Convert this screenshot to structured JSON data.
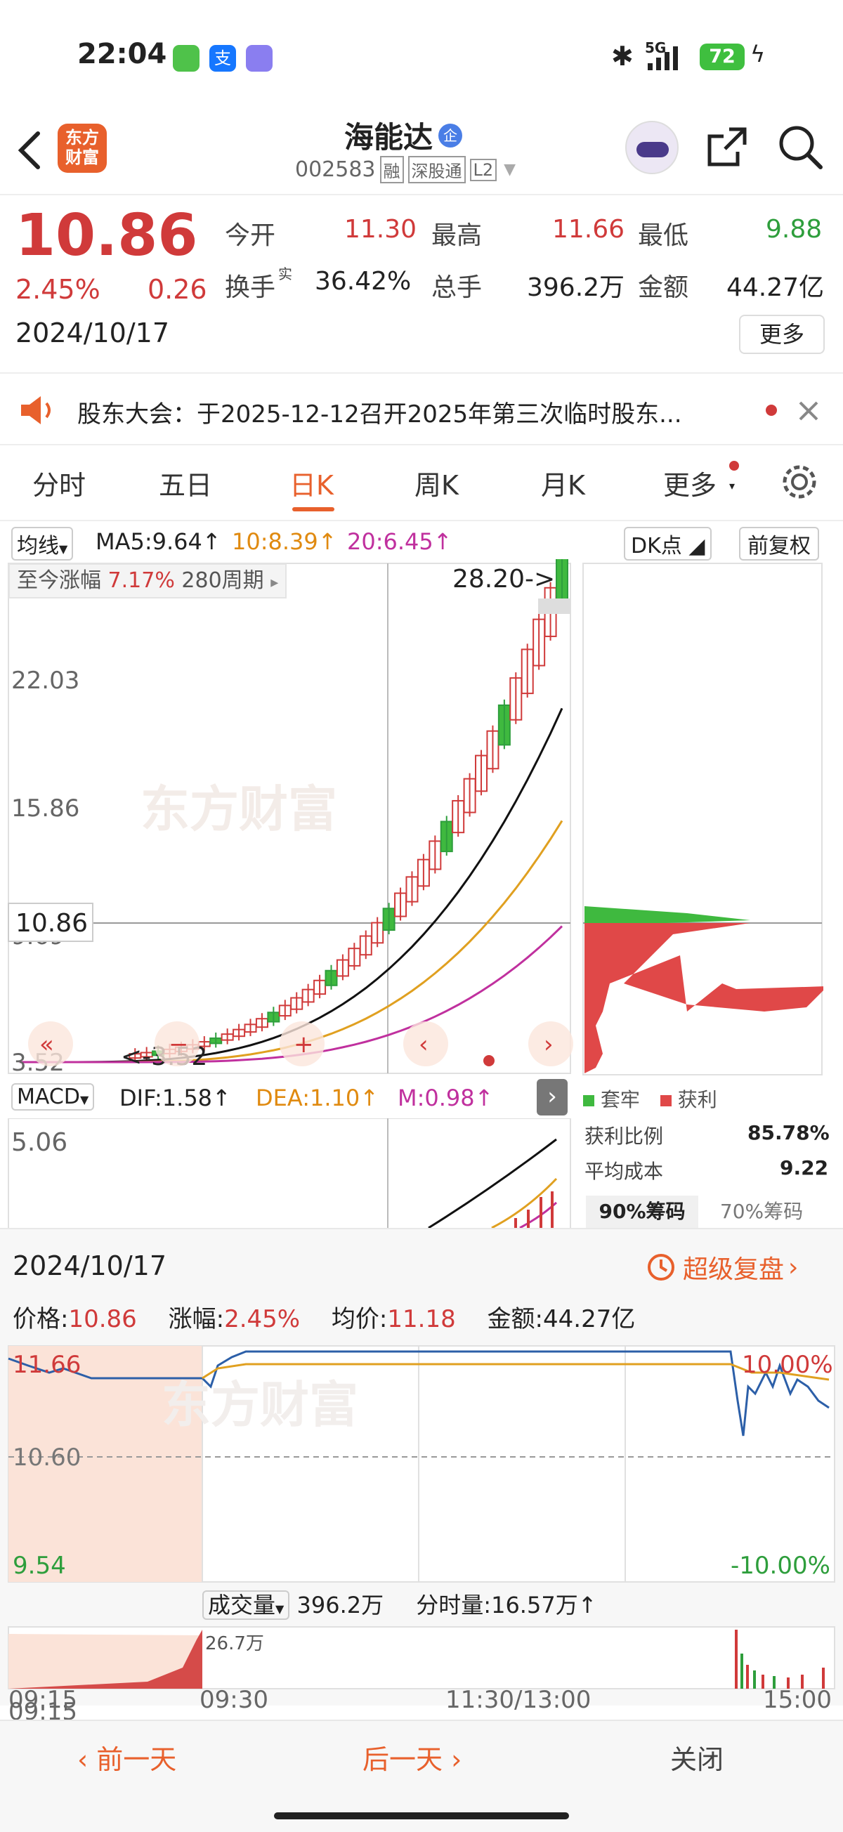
{
  "status_bar": {
    "time": "22:04",
    "network": "5G",
    "battery": "72"
  },
  "header": {
    "logo_line1": "东方",
    "logo_line2": "财富",
    "stock_name": "海能达",
    "badge": "企",
    "code": "002583",
    "tags": [
      "融",
      "深股通",
      "L2"
    ]
  },
  "quote": {
    "price": "10.86",
    "change_pct": "2.45%",
    "change": "0.26",
    "date": "2024/10/17",
    "fields": [
      {
        "label": "今开",
        "value": "11.30",
        "color": "red"
      },
      {
        "label": "最高",
        "value": "11.66",
        "color": "red"
      },
      {
        "label": "最低",
        "value": "9.88",
        "color": "green"
      },
      {
        "label": "换手",
        "sup": "实",
        "value": "36.42%",
        "color": "dark"
      },
      {
        "label": "总手",
        "value": "396.2万",
        "color": "dark"
      },
      {
        "label": "金额",
        "value": "44.27亿",
        "color": "dark"
      }
    ],
    "more": "更多"
  },
  "notice": {
    "text": "股东大会：于2025-12-12召开2025年第三次临时股东..."
  },
  "tabs": {
    "items": [
      "分时",
      "五日",
      "日K",
      "周K",
      "月K",
      "更多"
    ],
    "active": 2
  },
  "ma_bar": {
    "selector": "均线",
    "ma5": "MA5:9.64",
    "ma10": "10:8.39",
    "ma20": "20:6.45",
    "dk": "DK点",
    "fq": "前复权"
  },
  "kline": {
    "period_label": "至今涨幅",
    "period_pct": "7.17%",
    "period_n": "280周期",
    "high_label": "28.20->",
    "low_label": "<-3.52",
    "y_labels": [
      "22.03",
      "15.86",
      "9.69",
      "3.52"
    ],
    "cur_price": "10.86",
    "watermark": "东方财富"
  },
  "chips": {
    "legend_trapped": "套牢",
    "legend_profit": "获利",
    "profit_ratio_label": "获利比例",
    "profit_ratio": "85.78%",
    "avg_cost_label": "平均成本",
    "avg_cost": "9.22",
    "tab90": "90%筹码",
    "tab70": "70%筹码"
  },
  "macd": {
    "selector": "MACD",
    "dif": "DIF:1.58",
    "dea": "DEA:1.10",
    "m": "M:0.98",
    "y_label": "5.06"
  },
  "review": {
    "date": "2024/10/17",
    "super_label": "超级复盘",
    "price_label": "价格:",
    "price": "10.86",
    "chg_label": "涨幅:",
    "chg": "2.45%",
    "avg_label": "均价:",
    "avg": "11.18",
    "amt_label": "金额:",
    "amt": "44.27亿",
    "y_top": "11.66",
    "y_mid": "10.60",
    "y_bot": "9.54",
    "pct_top": "10.00%",
    "pct_bot": "-10.00%",
    "vol_selector": "成交量",
    "vol_total": "396.2万",
    "min_vol": "分时量:16.57万",
    "vol_peak": "26.7万",
    "times": [
      "09:15",
      "09:30",
      "11:30/13:00",
      "15:00"
    ]
  },
  "footer": {
    "prev": "前一天",
    "next": "后一天",
    "close": "关闭"
  },
  "colors": {
    "red": "#d03a3a",
    "green": "#2e9e3c",
    "orange": "#e08a10",
    "accent": "#e8602c"
  }
}
